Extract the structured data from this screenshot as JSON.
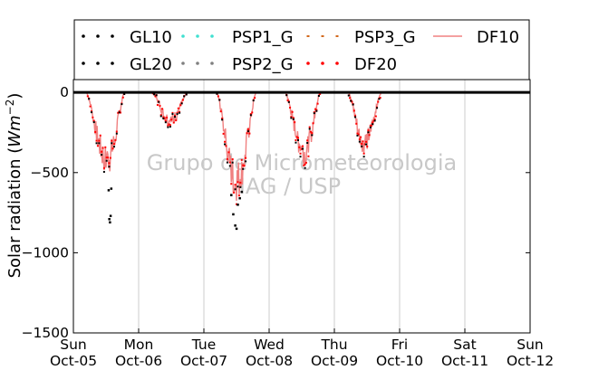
{
  "chart_data": {
    "type": "line",
    "ylabel": "Solar radiation",
    "ylabel_unit_base": "Wm",
    "ylabel_unit_exp": "−2",
    "ylim": [
      -1500,
      80
    ],
    "yticks": [
      0,
      -500,
      -1000,
      -1500
    ],
    "ytick_labels": [
      "0",
      "−500",
      "−1000",
      "−1500"
    ],
    "xlim_days": [
      0,
      7
    ],
    "xtick_labels": [
      {
        "day": "Sun",
        "date": "Oct-05"
      },
      {
        "day": "Mon",
        "date": "Oct-06"
      },
      {
        "day": "Tue",
        "date": "Oct-07"
      },
      {
        "day": "Wed",
        "date": "Oct-08"
      },
      {
        "day": "Thu",
        "date": "Oct-09"
      },
      {
        "day": "Fri",
        "date": "Oct-10"
      },
      {
        "day": "Sat",
        "date": "Oct-11"
      },
      {
        "day": "Sun",
        "date": "Oct-12"
      }
    ],
    "grid_x": true,
    "grid_y": false,
    "legend_position": "top",
    "watermark": [
      "Grupo de Micrometeorologia",
      "IAG / USP"
    ],
    "series": [
      {
        "name": "GL10",
        "style": "dots",
        "color": "#000000"
      },
      {
        "name": "GL20",
        "style": "dots",
        "color": "#000000"
      },
      {
        "name": "PSP1_G",
        "style": "dots",
        "color": "#40e0d0"
      },
      {
        "name": "PSP2_G",
        "style": "dots",
        "color": "#808080"
      },
      {
        "name": "PSP3_G",
        "style": "dash",
        "color": "#d2691e"
      },
      {
        "name": "DF20",
        "style": "dots",
        "color": "#ff0000"
      },
      {
        "name": "DF10",
        "style": "line",
        "color": "#f08080"
      }
    ],
    "daily_envelope": [
      {
        "day": 0,
        "start": 0.2,
        "end": 0.78,
        "peak": -450,
        "peak_at": 0.55
      },
      {
        "day": 1,
        "start": 0.22,
        "end": 0.75,
        "peak": -185,
        "peak_at": 0.5
      },
      {
        "day": 2,
        "start": 0.2,
        "end": 0.8,
        "peak": -590,
        "peak_at": 0.5
      },
      {
        "day": 3,
        "start": 0.25,
        "end": 0.78,
        "peak": -390,
        "peak_at": 0.55
      },
      {
        "day": 4,
        "start": 0.22,
        "end": 0.72,
        "peak": -330,
        "peak_at": 0.48
      }
    ],
    "outliers": [
      {
        "t": 0.55,
        "v": -790
      },
      {
        "t": 0.56,
        "v": -810
      },
      {
        "t": 0.57,
        "v": -770
      },
      {
        "t": 0.54,
        "v": -610
      },
      {
        "t": 0.58,
        "v": -600
      },
      {
        "t": 2.42,
        "v": -640
      },
      {
        "t": 2.45,
        "v": -760
      },
      {
        "t": 2.48,
        "v": -830
      },
      {
        "t": 2.52,
        "v": -700
      },
      {
        "t": 2.55,
        "v": -660
      },
      {
        "t": 2.58,
        "v": -620
      },
      {
        "t": 2.5,
        "v": -850
      }
    ]
  }
}
